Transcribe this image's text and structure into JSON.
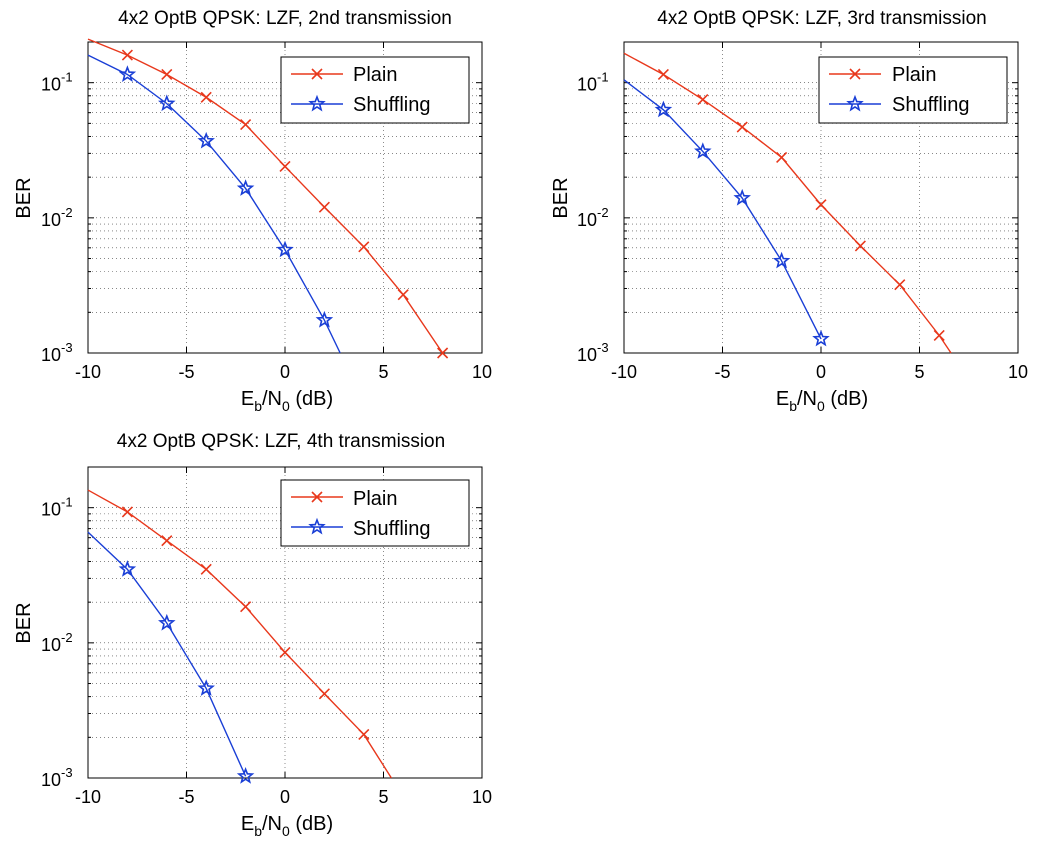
{
  "chart_data": [
    {
      "type": "line",
      "title": "4x2 OptB QPSK: LZF, 2nd transmission",
      "xlabel": {
        "base": "E",
        "sub1": "b",
        "mid": "/N",
        "sub2": "0",
        "tail": " (dB)"
      },
      "ylabel": "BER",
      "x_ticks": [
        "-10",
        "-5",
        "0",
        "5",
        "10"
      ],
      "y_ticks": [
        {
          "base": "10",
          "exp": "-1"
        },
        {
          "base": "10",
          "exp": "-2"
        },
        {
          "base": "10",
          "exp": "-3"
        }
      ],
      "xlim": [
        -10,
        10
      ],
      "ylim": [
        0.001,
        0.2
      ],
      "yscale": "log",
      "grid": true,
      "legend_position": "top-right",
      "series": [
        {
          "name": "Plain",
          "color": "#e8381c",
          "marker": "x",
          "x": [
            -10,
            -8,
            -6,
            -4,
            -2,
            0,
            2,
            4,
            6,
            8
          ],
          "y": [
            0.21,
            0.16,
            0.115,
            0.078,
            0.049,
            0.024,
            0.012,
            0.0061,
            0.0027,
            0.001
          ],
          "marker_x": [
            -8,
            -6,
            -4,
            -2,
            0,
            2,
            4,
            6,
            8
          ]
        },
        {
          "name": "Shuffling",
          "color": "#1a3fd6",
          "marker": "star",
          "x": [
            -10,
            -8,
            -6,
            -4,
            -2,
            0,
            2,
            2.8
          ],
          "y": [
            0.16,
            0.115,
            0.07,
            0.037,
            0.0165,
            0.0058,
            0.00175,
            0.001
          ],
          "marker_x": [
            -8,
            -6,
            -4,
            -2,
            0,
            2
          ]
        }
      ]
    },
    {
      "type": "line",
      "title": "4x2 OptB QPSK: LZF, 3rd transmission",
      "xlabel": {
        "base": "E",
        "sub1": "b",
        "mid": "/N",
        "sub2": "0",
        "tail": " (dB)"
      },
      "ylabel": "BER",
      "x_ticks": [
        "-10",
        "-5",
        "0",
        "5",
        "10"
      ],
      "y_ticks": [
        {
          "base": "10",
          "exp": "-1"
        },
        {
          "base": "10",
          "exp": "-2"
        },
        {
          "base": "10",
          "exp": "-3"
        }
      ],
      "xlim": [
        -10,
        10
      ],
      "ylim": [
        0.001,
        0.2
      ],
      "yscale": "log",
      "grid": true,
      "legend_position": "top-right",
      "series": [
        {
          "name": "Plain",
          "color": "#e8381c",
          "marker": "x",
          "x": [
            -10,
            -8,
            -6,
            -4,
            -2,
            0,
            2,
            4,
            6,
            6.6
          ],
          "y": [
            0.165,
            0.115,
            0.075,
            0.047,
            0.028,
            0.0125,
            0.0062,
            0.0032,
            0.00135,
            0.001
          ],
          "marker_x": [
            -8,
            -6,
            -4,
            -2,
            0,
            2,
            4,
            6
          ]
        },
        {
          "name": "Shuffling",
          "color": "#1a3fd6",
          "marker": "star",
          "x": [
            -10,
            -8,
            -6,
            -4,
            -2,
            0
          ],
          "y": [
            0.105,
            0.063,
            0.031,
            0.014,
            0.0048,
            0.00127
          ],
          "marker_x": [
            -8,
            -6,
            -4,
            -2,
            0
          ]
        }
      ]
    },
    {
      "type": "line",
      "title": "4x2 OptB QPSK: LZF, 4th transmission",
      "xlabel": {
        "base": "E",
        "sub1": "b",
        "mid": "/N",
        "sub2": "0",
        "tail": " (dB)"
      },
      "ylabel": "BER",
      "x_ticks": [
        "-10",
        "-5",
        "0",
        "5",
        "10"
      ],
      "y_ticks": [
        {
          "base": "10",
          "exp": "-1"
        },
        {
          "base": "10",
          "exp": "-2"
        },
        {
          "base": "10",
          "exp": "-3"
        }
      ],
      "xlim": [
        -10,
        10
      ],
      "ylim": [
        0.001,
        0.2
      ],
      "yscale": "log",
      "grid": true,
      "legend_position": "top-right",
      "series": [
        {
          "name": "Plain",
          "color": "#e8381c",
          "marker": "x",
          "x": [
            -10,
            -8,
            -6,
            -4,
            -2,
            0,
            2,
            4,
            5.4
          ],
          "y": [
            0.135,
            0.093,
            0.057,
            0.035,
            0.0185,
            0.0085,
            0.0042,
            0.0021,
            0.001
          ],
          "marker_x": [
            -8,
            -6,
            -4,
            -2,
            0,
            2,
            4
          ]
        },
        {
          "name": "Shuffling",
          "color": "#1a3fd6",
          "marker": "star",
          "x": [
            -10,
            -8,
            -6,
            -4,
            -2
          ],
          "y": [
            0.066,
            0.035,
            0.014,
            0.0046,
            0.00103
          ],
          "marker_x": [
            -8,
            -6,
            -4,
            -2
          ]
        }
      ]
    }
  ]
}
